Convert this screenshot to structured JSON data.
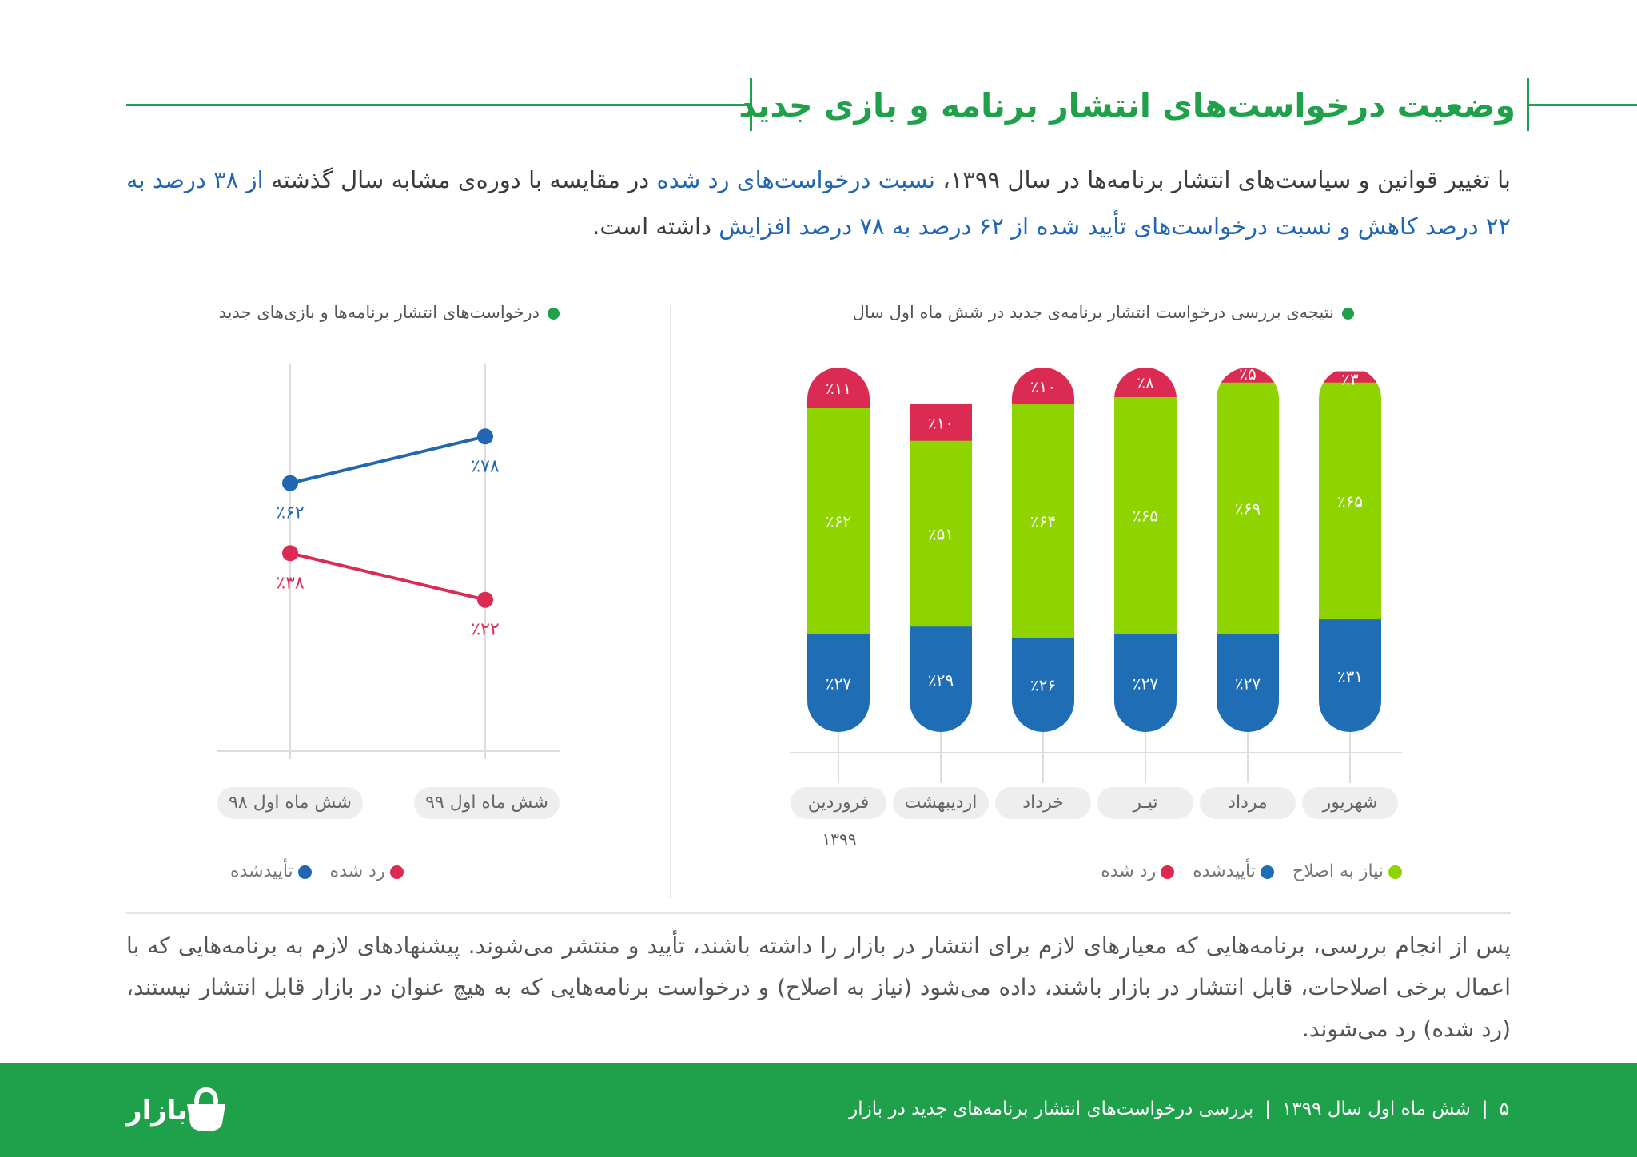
{
  "title": "وضعیت درخواست‌های انتشار برنامه و بازی جدید",
  "intro": {
    "p1": "با تغییر قوانین و سیاست‌های انتشار برنامه‌ها در سال ۱۳۹۹، ",
    "h1": "نسبت درخواست‌های رد شده",
    "p2": " در مقایسه با دوره‌ی مشابه سال گذشته ",
    "h2": "از ۳۸ درصد به ۲۲ درصد کاهش و نسبت درخواست‌های تأیید شده از ۶۲ درصد به ۷۸ درصد افزایش",
    "p3": " داشته است."
  },
  "line_chart_title": "درخواست‌های انتشار برنامه‌ها و بازی‌های جدید",
  "bar_chart_title": "نتیجه‌ی بررسی درخواست انتشار برنامه‌ی جدید در شش ماه اول سال",
  "chart_data": [
    {
      "type": "line",
      "title": "درخواست‌های انتشار برنامه‌ها و بازی‌های جدید",
      "categories": [
        "شش ماه اول ۹۸",
        "شش ماه اول ۹۹"
      ],
      "series": [
        {
          "name": "تأییدشده",
          "values": [
            62,
            78
          ],
          "labels": [
            "٪۶۲",
            "٪۷۸"
          ],
          "color": "#2066b3"
        },
        {
          "name": "رد شده",
          "values": [
            38,
            22
          ],
          "labels": [
            "٪۳۸",
            "٪۲۲"
          ],
          "color": "#dc2b52"
        }
      ],
      "ylim": [
        0,
        100
      ],
      "legend": "bottom"
    },
    {
      "type": "bar",
      "stacked": true,
      "title": "نتیجه‌ی بررسی درخواست انتشار برنامه‌ی جدید در شش ماه اول سال",
      "categories": [
        "فروردین",
        "اردیبهشت",
        "خرداد",
        "تیـر",
        "مرداد",
        "شهریور"
      ],
      "year_label": "۱۳۹۹",
      "series": [
        {
          "name": "تأییدشده",
          "color": "#1f6db5",
          "values": [
            27,
            29,
            26,
            27,
            27,
            31
          ],
          "labels": [
            "٪۲۷",
            "٪۲۹",
            "٪۲۶",
            "٪۲۷",
            "٪۲۷",
            "٪۳۱"
          ]
        },
        {
          "name": "نیاز به اصلاح",
          "color": "#8fd400",
          "values": [
            62,
            51,
            64,
            65,
            69,
            65
          ],
          "labels": [
            "٪۶۲",
            "٪۵۱",
            "٪۶۴",
            "٪۶۵",
            "٪۶۹",
            "٪۶۵"
          ]
        },
        {
          "name": "رد شده",
          "color": "#dc2b52",
          "values": [
            11,
            10,
            10,
            8,
            5,
            3
          ],
          "labels": [
            "٪۱۱",
            "٪۱۰",
            "٪۱۰",
            "٪۸",
            "٪۵",
            "٪۳"
          ]
        }
      ],
      "legend": "bottom"
    }
  ],
  "line_legend": {
    "rejected": "رد شده",
    "approved": "تأییدشده"
  },
  "bar_legend": {
    "needs_fix": "نیاز به اصلاح",
    "approved": "تأییدشده",
    "rejected": "رد شده"
  },
  "outro": "پس از انجام بررسی، برنامه‌هایی که معیارهای لازم برای انتشار در بازار را داشته باشند، تأیید و منتشر می‌شوند. پیشنهادهای لازم به برنامه‌هایی که با اعمال برخی اصلاحات، قابل انتشار در بازار باشند، داده می‌شود (نیاز به اصلاح) و درخواست برنامه‌هایی که به هیچ عنوان در بازار قابل انتشار نیستند، (رد شده) رد می‌شوند.",
  "footer": {
    "page": "۵",
    "period": "شش ماه اول سال ۱۳۹۹",
    "report": "بررسی درخواست‌های انتشار برنامه‌های جدید در بازار",
    "logo": "بازار"
  },
  "colors": {
    "brand": "#1ea14a",
    "approved": "#1f6db5",
    "needs_fix": "#8fd400",
    "rejected": "#dc2b52"
  }
}
